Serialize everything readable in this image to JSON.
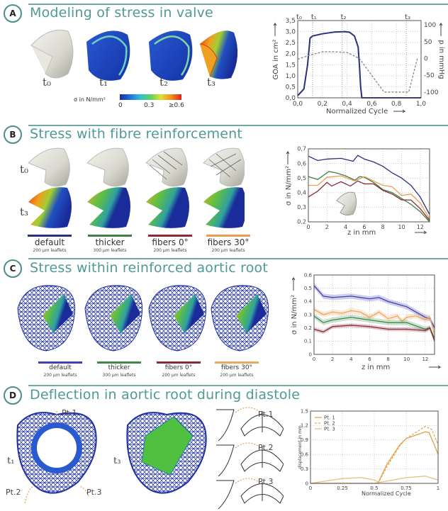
{
  "panels": {
    "A": {
      "letter": "A",
      "title": "Modeling of stress in valve",
      "time_labels": [
        "t₀",
        "t₁",
        "t₂",
        "t₃"
      ],
      "colorbar": {
        "label": "σ in N/mm²",
        "ticks": [
          "0",
          "0.3",
          "≥0.6"
        ]
      }
    },
    "B": {
      "letter": "B",
      "title": "Stress with fibre reinforcement",
      "row_labels": [
        "t₀",
        "t₃"
      ],
      "variants": [
        {
          "name": "default",
          "sub": "200 µm leaflets",
          "color": "#2b2f80"
        },
        {
          "name": "thicker",
          "sub": "300 µm leaflets",
          "color": "#3d7f45"
        },
        {
          "name": "fibers 0°",
          "sub": "200 µm leaflets",
          "color": "#8b2a3a"
        },
        {
          "name": "fibers 30°",
          "sub": "200 µm leaflets",
          "color": "#e8a050"
        }
      ]
    },
    "C": {
      "letter": "C",
      "title": "Stress within reinforced aortic root",
      "variants": [
        {
          "name": "default",
          "sub": "200 µm leaflets",
          "color": "#4040b0"
        },
        {
          "name": "thicker",
          "sub": "300 µm leaflets",
          "color": "#3d8a4a"
        },
        {
          "name": "fibers 0°",
          "sub": "200 µm leaflets",
          "color": "#8b2a3a"
        },
        {
          "name": "fibers 30°",
          "sub": "200 µm leaflets",
          "color": "#eba860"
        }
      ]
    },
    "D": {
      "letter": "D",
      "title": "Deflection in aortic root during diastole",
      "time_labels": [
        "t₁",
        "t₃"
      ],
      "points": [
        "Pt.1",
        "Pt.2",
        "Pt.3"
      ]
    }
  },
  "chart_data": [
    {
      "type": "line",
      "title": "",
      "xlabel": "Normalized Cycle",
      "ylabel": "GOA in cm²",
      "y2label": "p in mmHg",
      "xlim": [
        0,
        1
      ],
      "ylim": [
        0,
        3.5
      ],
      "y2lim": [
        -117,
        113
      ],
      "grid": true,
      "x_ticks": [
        0,
        0.2,
        0.4,
        0.6,
        0.8,
        1.0
      ],
      "x_tick_labels": [
        "0,0",
        "0,2",
        "0,4",
        "0,6",
        "0,8",
        "1,0"
      ],
      "y_ticks": [
        0,
        0.5,
        1,
        1.5,
        2,
        2.5,
        3,
        3.5
      ],
      "y_tick_labels": [
        "0,0",
        "0,5",
        "1,0",
        "1,5",
        "2,0",
        "2,5",
        "3,0",
        "3,5"
      ],
      "y2_ticks": [
        -100,
        -50,
        0,
        50,
        100
      ],
      "y2_tick_labels": [
        "-100",
        "-50",
        "0",
        "50",
        "100"
      ],
      "markers": [
        {
          "x": 0,
          "label": "t₀"
        },
        {
          "x": 0.12,
          "label": "t₁"
        },
        {
          "x": 0.36,
          "label": "t₂"
        },
        {
          "x": 0.88,
          "label": "t₃"
        }
      ],
      "series": [
        {
          "name": "GOA",
          "axis": "left",
          "color": "#2b2f80",
          "dash": false,
          "x": [
            0,
            0.05,
            0.08,
            0.1,
            0.12,
            0.2,
            0.3,
            0.38,
            0.42,
            0.46,
            0.49,
            0.5,
            0.51,
            0.52,
            1.0
          ],
          "y": [
            0.1,
            0.4,
            1.5,
            2.7,
            2.8,
            2.9,
            2.98,
            3.0,
            2.97,
            2.8,
            2.3,
            1.5,
            0.5,
            0,
            0
          ]
        },
        {
          "name": "pressure",
          "axis": "right",
          "color": "#888888",
          "dash": true,
          "x": [
            0,
            0.1,
            0.2,
            0.3,
            0.4,
            0.5,
            0.7,
            0.9,
            0.97
          ],
          "y": [
            -2,
            10,
            20,
            20,
            18,
            0,
            -100,
            -100,
            0
          ]
        }
      ]
    },
    {
      "type": "line",
      "title": "",
      "xlabel": "z in mm",
      "ylabel": "σ in N/mm²",
      "xlim": [
        0,
        13
      ],
      "ylim": [
        0.2,
        0.7
      ],
      "grid": true,
      "x_ticks": [
        0,
        2,
        4,
        6,
        8,
        10,
        12
      ],
      "x_tick_labels": [
        "0",
        "2",
        "4",
        "6",
        "8",
        "10",
        "12"
      ],
      "y_ticks": [
        0.2,
        0.3,
        0.4,
        0.5,
        0.6,
        0.7
      ],
      "y_tick_labels": [
        "0,2",
        "0,3",
        "0,4",
        "0,5",
        "0,6",
        "0,7"
      ],
      "series": [
        {
          "name": "default",
          "color": "#2b2f80",
          "x": [
            0,
            1,
            2,
            3.5,
            4.8,
            5.3,
            6,
            7,
            8,
            9,
            10,
            11,
            12,
            13
          ],
          "y": [
            0.65,
            0.62,
            0.63,
            0.635,
            0.615,
            0.655,
            0.63,
            0.61,
            0.58,
            0.535,
            0.5,
            0.45,
            0.37,
            0.25
          ]
        },
        {
          "name": "thicker",
          "color": "#3d7f45",
          "x": [
            0,
            1,
            2.2,
            3,
            4,
            5,
            5.5,
            6,
            7,
            8,
            9,
            10,
            11,
            12,
            13
          ],
          "y": [
            0.51,
            0.49,
            0.545,
            0.535,
            0.515,
            0.485,
            0.51,
            0.505,
            0.47,
            0.42,
            0.4,
            0.36,
            0.32,
            0.27,
            0.2
          ]
        },
        {
          "name": "fibers 30°",
          "color": "#e8a050",
          "x": [
            0,
            1,
            2,
            3.5,
            5,
            6,
            7,
            8,
            9,
            10,
            11,
            12,
            13
          ],
          "y": [
            0.45,
            0.45,
            0.505,
            0.515,
            0.48,
            0.51,
            0.48,
            0.45,
            0.44,
            0.38,
            0.39,
            0.33,
            0.22
          ]
        },
        {
          "name": "fibers 0°",
          "color": "#8b2a3a",
          "x": [
            0,
            1,
            2,
            2.5,
            3.5,
            4.5,
            5.3,
            6,
            7,
            8,
            9,
            10,
            11,
            12,
            13
          ],
          "y": [
            0.37,
            0.41,
            0.47,
            0.445,
            0.475,
            0.445,
            0.48,
            0.46,
            0.46,
            0.415,
            0.39,
            0.35,
            0.35,
            0.29,
            0.21
          ]
        }
      ]
    },
    {
      "type": "line",
      "title": "",
      "xlabel": "z in mm",
      "ylabel": "σ in N/mm²",
      "xlim": [
        0,
        13
      ],
      "ylim": [
        0,
        0.6
      ],
      "grid": true,
      "x_ticks": [
        0,
        2,
        4,
        6,
        8,
        10,
        12
      ],
      "x_tick_labels": [
        "0",
        "2",
        "4",
        "6",
        "8",
        "10",
        "12"
      ],
      "y_ticks": [
        0,
        0.1,
        0.2,
        0.3,
        0.4,
        0.5,
        0.6
      ],
      "y_tick_labels": [
        "0",
        "0.1",
        "0.2",
        "0.3",
        "0.4",
        "0.5",
        "0.6"
      ],
      "series": [
        {
          "name": "default",
          "color": "#4040b0",
          "band": 0.02,
          "x": [
            0,
            1,
            2,
            4,
            6,
            7,
            8,
            9,
            10,
            12,
            12.5,
            13
          ],
          "y": [
            0.52,
            0.44,
            0.43,
            0.44,
            0.42,
            0.43,
            0.4,
            0.38,
            0.36,
            0.28,
            0.27,
            0.2
          ]
        },
        {
          "name": "fibers 30°",
          "color": "#eba860",
          "band": 0.02,
          "x": [
            0,
            1,
            2,
            3,
            4,
            5,
            6,
            7,
            8,
            9,
            9.5,
            10,
            11,
            12,
            12.5,
            13
          ],
          "y": [
            0.34,
            0.3,
            0.32,
            0.31,
            0.33,
            0.32,
            0.28,
            0.32,
            0.27,
            0.29,
            0.25,
            0.28,
            0.29,
            0.26,
            0.28,
            0.15
          ]
        },
        {
          "name": "thicker",
          "color": "#3d8a4a",
          "band": 0.02,
          "x": [
            0,
            1,
            2,
            4,
            6,
            8,
            10,
            12,
            12.5,
            13
          ],
          "y": [
            0.29,
            0.24,
            0.26,
            0.28,
            0.26,
            0.24,
            0.24,
            0.19,
            0.2,
            0.12
          ]
        },
        {
          "name": "fibers 0°",
          "color": "#8b2a3a",
          "band": 0.015,
          "x": [
            0,
            1,
            2,
            4,
            6,
            7,
            8,
            10,
            12,
            12.5,
            13
          ],
          "y": [
            0.19,
            0.17,
            0.21,
            0.22,
            0.21,
            0.2,
            0.19,
            0.19,
            0.18,
            0.2,
            0.1
          ]
        }
      ]
    },
    {
      "type": "line",
      "title": "",
      "xlabel": "Normalized Cycle",
      "ylabel": "displacement in mm",
      "xlim": [
        0,
        1
      ],
      "ylim": [
        0,
        1.5
      ],
      "grid": true,
      "legend": "top-left",
      "x_ticks": [
        0,
        0.25,
        0.5,
        0.75,
        1
      ],
      "x_tick_labels": [
        "0",
        "0.25",
        "0.5",
        "0.75",
        "1"
      ],
      "y_ticks": [
        0,
        0.3,
        0.6,
        0.9,
        1.2,
        1.5
      ],
      "y_tick_labels": [
        "0",
        "0.3",
        "0.6",
        "0.9",
        "1.2",
        "1.5"
      ],
      "series": [
        {
          "name": "Pt. 1",
          "color": "#e0a050",
          "dash": false,
          "x": [
            0,
            0.5,
            0.53,
            0.6,
            0.7,
            0.75,
            0.9,
            0.93,
            0.97,
            1
          ],
          "y": [
            0,
            0,
            0.01,
            0.4,
            0.8,
            0.93,
            1.07,
            1.05,
            0.8,
            0.6
          ]
        },
        {
          "name": "Pt. 2",
          "color": "#e8a850",
          "dash": true,
          "x": [
            0,
            0.53,
            0.6,
            0.7,
            0.75,
            0.9,
            0.95,
            1
          ],
          "y": [
            0,
            0,
            0.35,
            0.78,
            0.93,
            1.18,
            1.12,
            0.8
          ]
        },
        {
          "name": "Pt. 3",
          "color": "#e8c080",
          "dash": false,
          "x": [
            0,
            0.25,
            0.4,
            0.5,
            0.54,
            0.75,
            0.9,
            1
          ],
          "y": [
            0,
            0.1,
            0.12,
            0.07,
            0.02,
            0.12,
            0.15,
            0.07
          ]
        }
      ]
    }
  ]
}
